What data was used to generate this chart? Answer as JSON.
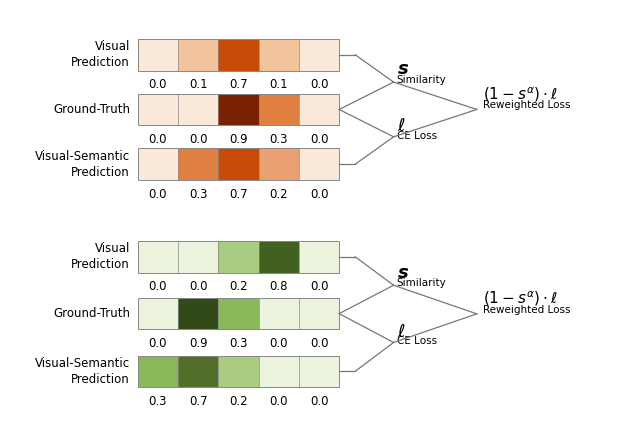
{
  "top_group": {
    "bars": [
      {
        "label": "Visual\nPrediction",
        "values": [
          0.0,
          0.1,
          0.7,
          0.1,
          0.0
        ]
      },
      {
        "label": "Ground-Truth",
        "values": [
          0.0,
          0.0,
          0.9,
          0.3,
          0.0
        ]
      },
      {
        "label": "Visual-Semantic\nPrediction",
        "values": [
          0.0,
          0.3,
          0.7,
          0.2,
          0.0
        ]
      }
    ]
  },
  "bottom_group": {
    "bars": [
      {
        "label": "Visual\nPrediction",
        "values": [
          0.0,
          0.0,
          0.2,
          0.8,
          0.0
        ]
      },
      {
        "label": "Ground-Truth",
        "values": [
          0.0,
          0.9,
          0.3,
          0.0,
          0.0
        ]
      },
      {
        "label": "Visual-Semantic\nPrediction",
        "values": [
          0.3,
          0.7,
          0.2,
          0.0,
          0.0
        ]
      }
    ]
  },
  "orange_colors": {
    "0.0": "#FAE8D8",
    "0.1": "#F2C49C",
    "0.2": "#EAA070",
    "0.3": "#DF8040",
    "0.7": "#C94B08",
    "0.8": "#B03800",
    "0.9": "#7A2200"
  },
  "green_colors": {
    "0.0": "#EBF3DF",
    "0.1": "#D2E8B8",
    "0.2": "#A8CC80",
    "0.3": "#88B858",
    "0.7": "#526E28",
    "0.8": "#426020",
    "0.9": "#324A18"
  },
  "figure_bg": "#FFFFFF",
  "label_fontsize": 8.5,
  "tick_fontsize": 8.5
}
